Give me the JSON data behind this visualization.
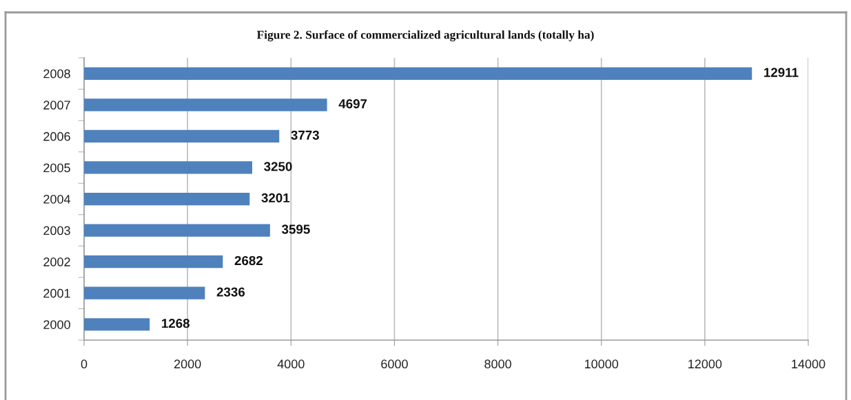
{
  "chart_data": {
    "type": "bar",
    "orientation": "horizontal",
    "title": "Figure 2. Surface of commercialized agricultural lands (totally ha)",
    "categories": [
      "2008",
      "2007",
      "2006",
      "2005",
      "2004",
      "2003",
      "2002",
      "2001",
      "2000"
    ],
    "values": [
      12911,
      4697,
      3773,
      3250,
      3201,
      3595,
      2682,
      2336,
      1268
    ],
    "color": "#4f81bd",
    "xlim": [
      0,
      14000
    ],
    "xticks": [
      0,
      2000,
      4000,
      6000,
      8000,
      10000,
      12000,
      14000
    ],
    "grid": "x",
    "data_labels": true
  }
}
